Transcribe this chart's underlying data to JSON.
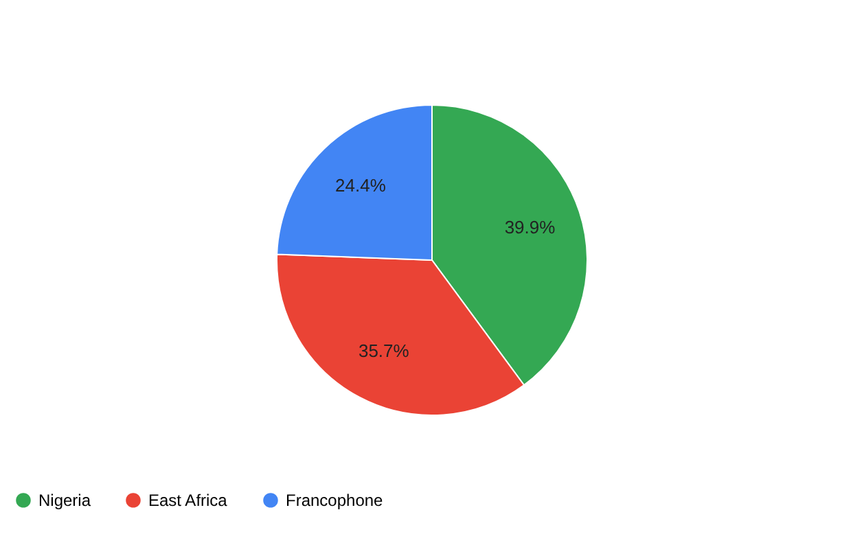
{
  "chart_data": {
    "type": "pie",
    "categories": [
      "Nigeria",
      "East Africa",
      "Francophone"
    ],
    "values": [
      39.9,
      35.7,
      24.4
    ],
    "colors": [
      "#34a853",
      "#ea4335",
      "#4285f4"
    ],
    "value_labels": [
      "39.9%",
      "35.7%",
      "24.4%"
    ],
    "legend": "bottom"
  }
}
